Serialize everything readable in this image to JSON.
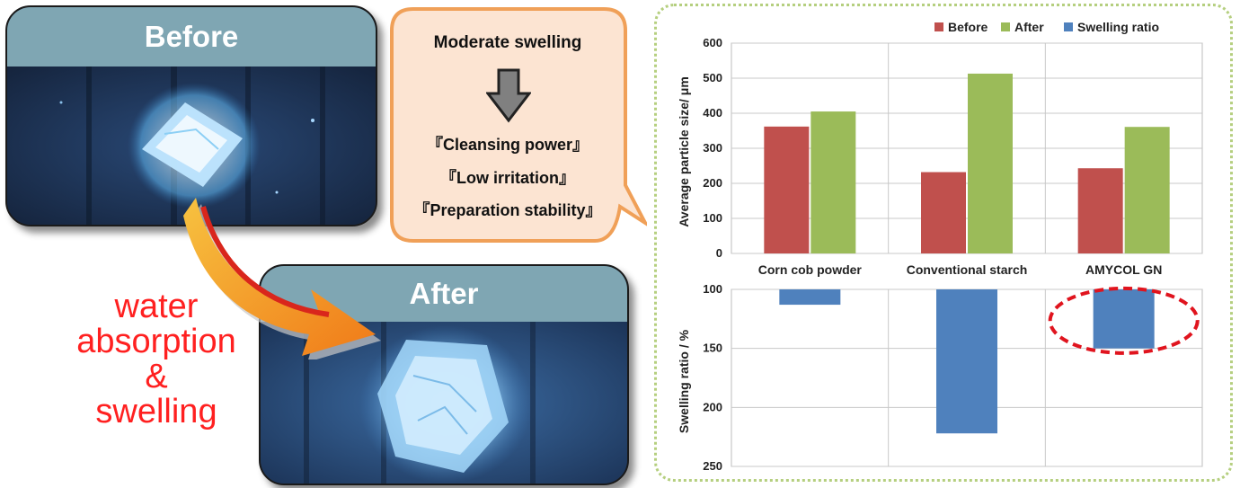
{
  "photos": {
    "before_label": "Before",
    "after_label": "After"
  },
  "side_text": [
    "water",
    "absorption",
    "&",
    "swelling"
  ],
  "callout": {
    "title": "Moderate swelling",
    "items": [
      "『Cleansing power』",
      "『Low irritation』",
      "『Preparation stability』"
    ]
  },
  "colors": {
    "before": "#c0504d",
    "after": "#9bbb59",
    "swelling_ratio": "#4f81bd",
    "photo_header": "#7fa6b3",
    "callout_fill": "#fce4d2",
    "callout_border": "#f0a058",
    "highlight_ellipse": "#e0141e",
    "side_text": "#ff2020"
  },
  "chart_data": [
    {
      "type": "bar",
      "categories": [
        "Corn cob powder",
        "Conventional starch",
        "AMYCOL GN"
      ],
      "series": [
        {
          "name": "Before",
          "values": [
            362,
            232,
            243
          ]
        },
        {
          "name": "After",
          "values": [
            405,
            513,
            361
          ]
        }
      ],
      "ylabel": "Average particle size/ μm",
      "ylim": [
        0,
        600
      ],
      "yticks": [
        "0",
        "100",
        "200",
        "300",
        "400",
        "500",
        "600"
      ],
      "legend": [
        "Before",
        "After",
        "Swelling ratio"
      ],
      "legend_position": "top-right",
      "grid": true
    },
    {
      "type": "bar",
      "categories": [
        "Corn cob powder",
        "Conventional starch",
        "AMYCOL GN"
      ],
      "series": [
        {
          "name": "Swelling ratio",
          "values": [
            113,
            222,
            150
          ]
        }
      ],
      "ylabel": "Swelling ratio / %",
      "ylim": [
        100,
        250
      ],
      "y_reversed": true,
      "yticks": [
        "100",
        "150",
        "200",
        "250"
      ],
      "highlighted_category": "AMYCOL GN",
      "grid": true
    }
  ]
}
